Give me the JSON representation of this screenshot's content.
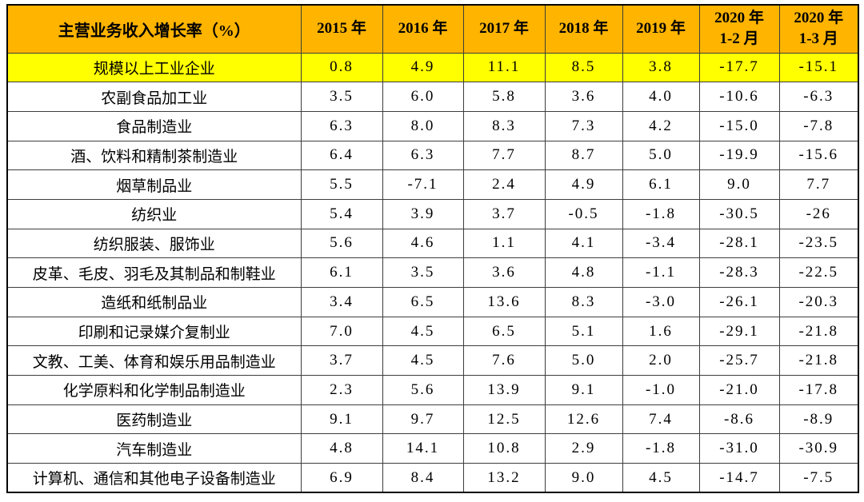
{
  "chart_data": {
    "type": "table",
    "title": "主营业务收入增长率（%）",
    "header": {
      "label": "主营业务收入增长率（%）",
      "year_columns": [
        {
          "line1": "2015 年",
          "line2": ""
        },
        {
          "line1": "2016 年",
          "line2": ""
        },
        {
          "line1": "2017 年",
          "line2": ""
        },
        {
          "line1": "2018 年",
          "line2": ""
        },
        {
          "line1": "2019 年",
          "line2": ""
        },
        {
          "line1": "2020 年",
          "line2": "1-2 月"
        },
        {
          "line1": "2020 年",
          "line2": "1-3 月"
        }
      ]
    },
    "rows": [
      {
        "label": "规模以上工业企业",
        "highlight": true,
        "values": [
          "0.8",
          "4.9",
          "11.1",
          "8.5",
          "3.8",
          "-17.7",
          "-15.1"
        ]
      },
      {
        "label": "农副食品加工业",
        "highlight": false,
        "values": [
          "3.5",
          "6.0",
          "5.8",
          "3.6",
          "4.0",
          "-10.6",
          "-6.3"
        ]
      },
      {
        "label": "食品制造业",
        "highlight": false,
        "values": [
          "6.3",
          "8.0",
          "8.3",
          "7.3",
          "4.2",
          "-15.0",
          "-7.8"
        ]
      },
      {
        "label": "酒、饮料和精制茶制造业",
        "highlight": false,
        "values": [
          "6.4",
          "6.3",
          "7.7",
          "8.7",
          "5.0",
          "-19.9",
          "-15.6"
        ]
      },
      {
        "label": "烟草制品业",
        "highlight": false,
        "values": [
          "5.5",
          "-7.1",
          "2.4",
          "4.9",
          "6.1",
          "9.0",
          "7.7"
        ]
      },
      {
        "label": "纺织业",
        "highlight": false,
        "values": [
          "5.4",
          "3.9",
          "3.7",
          "-0.5",
          "-1.8",
          "-30.5",
          "-26"
        ]
      },
      {
        "label": "纺织服装、服饰业",
        "highlight": false,
        "values": [
          "5.6",
          "4.6",
          "1.1",
          "4.1",
          "-3.4",
          "-28.1",
          "-23.5"
        ]
      },
      {
        "label": "皮革、毛皮、羽毛及其制品和制鞋业",
        "highlight": false,
        "values": [
          "6.1",
          "3.5",
          "3.6",
          "4.8",
          "-1.1",
          "-28.3",
          "-22.5"
        ]
      },
      {
        "label": "造纸和纸制品业",
        "highlight": false,
        "values": [
          "3.4",
          "6.5",
          "13.6",
          "8.3",
          "-3.0",
          "-26.1",
          "-20.3"
        ]
      },
      {
        "label": "印刷和记录媒介复制业",
        "highlight": false,
        "values": [
          "7.0",
          "4.5",
          "6.5",
          "5.1",
          "1.6",
          "-29.1",
          "-21.8"
        ]
      },
      {
        "label": "文教、工美、体育和娱乐用品制造业",
        "highlight": false,
        "values": [
          "3.7",
          "4.5",
          "7.6",
          "5.0",
          "2.0",
          "-25.7",
          "-21.8"
        ]
      },
      {
        "label": "化学原料和化学制品制造业",
        "highlight": false,
        "values": [
          "2.3",
          "5.6",
          "13.9",
          "9.1",
          "-1.0",
          "-21.0",
          "-17.8"
        ]
      },
      {
        "label": "医药制造业",
        "highlight": false,
        "values": [
          "9.1",
          "9.7",
          "12.5",
          "12.6",
          "7.4",
          "-8.6",
          "-8.9"
        ]
      },
      {
        "label": "汽车制造业",
        "highlight": false,
        "values": [
          "4.8",
          "14.1",
          "10.8",
          "2.9",
          "-1.8",
          "-31.0",
          "-30.9"
        ]
      },
      {
        "label": "计算机、通信和其他电子设备制造业",
        "highlight": false,
        "values": [
          "6.9",
          "8.4",
          "13.2",
          "9.0",
          "4.5",
          "-14.7",
          "-7.5"
        ]
      }
    ],
    "layout_hints": {
      "highlight_row_meaning": "total for all industrial enterprises above designated size",
      "grid": true,
      "legend_position": "none"
    }
  },
  "colors": {
    "header_bg": "#FFB400",
    "highlight_bg": "#FFFF00",
    "inner_border": "#3d3d3d",
    "outer_border": "#000000",
    "text": "#000000"
  }
}
